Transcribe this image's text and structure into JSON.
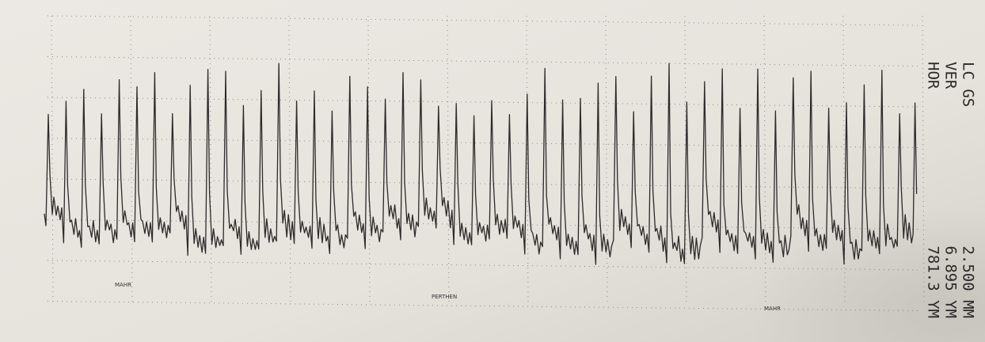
{
  "readout": [
    {
      "name": "LC GS",
      "value": "2.500 MM"
    },
    {
      "name": "VER",
      "value": "6.895 YM"
    },
    {
      "name": "HOR",
      "value": "781.3 YM"
    }
  ],
  "footer_labels": [
    "MAHR",
    "PERTHEN",
    "MAHR"
  ]
}
